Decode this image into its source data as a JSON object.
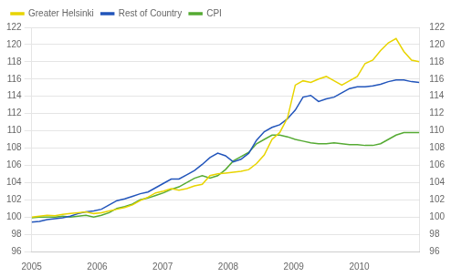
{
  "chart_data": {
    "type": "line",
    "x": [
      2005,
      2005.11834,
      2005.23668,
      2005.35502,
      2005.47336,
      2005.5917,
      2005.71004,
      2005.82838,
      2005.94672,
      2006.06506,
      2006.1834,
      2006.30174,
      2006.42008,
      2006.53842,
      2006.65676,
      2006.7751,
      2006.89344,
      2007.01178,
      2007.13012,
      2007.24846,
      2007.3668,
      2007.48514,
      2007.60348,
      2007.72182,
      2007.84016,
      2007.9585,
      2008.07684,
      2008.19518,
      2008.31352,
      2008.43186,
      2008.5502,
      2008.66854,
      2008.78688,
      2008.90522,
      2009.02356,
      2009.1419,
      2009.26024,
      2009.37858,
      2009.49692,
      2009.61526,
      2009.7336,
      2009.85194,
      2009.97028,
      2010.08862,
      2010.20696,
      2010.3253,
      2010.44364,
      2010.56198,
      2010.68032,
      2010.79866,
      2010.917
    ],
    "series": [
      {
        "name": "Greater Helsinki",
        "color": "#e8d400",
        "values": [
          100.0,
          100.1,
          100.2,
          100.15,
          100.3,
          100.4,
          100.5,
          100.6,
          100.4,
          100.5,
          100.7,
          100.9,
          101.1,
          101.4,
          101.9,
          102.3,
          102.8,
          103.0,
          103.3,
          103.1,
          103.3,
          103.6,
          103.8,
          104.8,
          105.0,
          105.1,
          105.2,
          105.3,
          105.5,
          106.2,
          107.2,
          109.0,
          109.8,
          111.5,
          115.3,
          115.8,
          115.6,
          116.0,
          116.3,
          115.8,
          115.3,
          115.8,
          116.3,
          117.8,
          118.2,
          119.3,
          120.2,
          120.7,
          119.2,
          118.2,
          118.0
        ]
      },
      {
        "name": "Rest of Country",
        "color": "#2255bb",
        "values": [
          99.4,
          99.5,
          99.7,
          99.8,
          99.9,
          100.1,
          100.4,
          100.6,
          100.7,
          100.9,
          101.4,
          101.9,
          102.1,
          102.4,
          102.7,
          102.9,
          103.4,
          103.9,
          104.4,
          104.4,
          104.9,
          105.4,
          106.1,
          106.9,
          107.4,
          107.1,
          106.4,
          106.7,
          107.4,
          108.9,
          109.9,
          110.4,
          110.7,
          111.4,
          112.4,
          113.9,
          114.1,
          113.4,
          113.7,
          113.9,
          114.4,
          114.9,
          115.1,
          115.1,
          115.2,
          115.4,
          115.7,
          115.9,
          115.9,
          115.7,
          115.6
        ]
      },
      {
        "name": "CPI",
        "color": "#55aa33",
        "values": [
          99.9,
          100.0,
          100.0,
          100.0,
          100.1,
          100.0,
          100.1,
          100.2,
          100.0,
          100.2,
          100.5,
          101.0,
          101.2,
          101.5,
          102.0,
          102.2,
          102.5,
          102.8,
          103.2,
          103.5,
          104.0,
          104.5,
          104.8,
          104.5,
          104.8,
          105.5,
          106.5,
          107.0,
          107.5,
          108.5,
          109.0,
          109.5,
          109.5,
          109.3,
          109.0,
          108.8,
          108.6,
          108.5,
          108.5,
          108.6,
          108.5,
          108.4,
          108.4,
          108.3,
          108.3,
          108.5,
          109.0,
          109.5,
          109.8,
          109.8,
          109.8
        ]
      }
    ],
    "xlim": [
      2005.0,
      2010.917
    ],
    "xticks": [
      2005,
      2006,
      2007,
      2008,
      2009,
      2010
    ],
    "ylim": [
      96,
      122
    ],
    "yticks": [
      96,
      98,
      100,
      102,
      104,
      106,
      108,
      110,
      112,
      114,
      116,
      118,
      120,
      122
    ],
    "y2lim": [
      96,
      122
    ],
    "y2ticks": [
      96,
      98,
      100,
      102,
      104,
      106,
      108,
      110,
      112,
      114,
      116,
      118,
      120,
      122
    ],
    "grid": true,
    "legend": "upper left"
  }
}
